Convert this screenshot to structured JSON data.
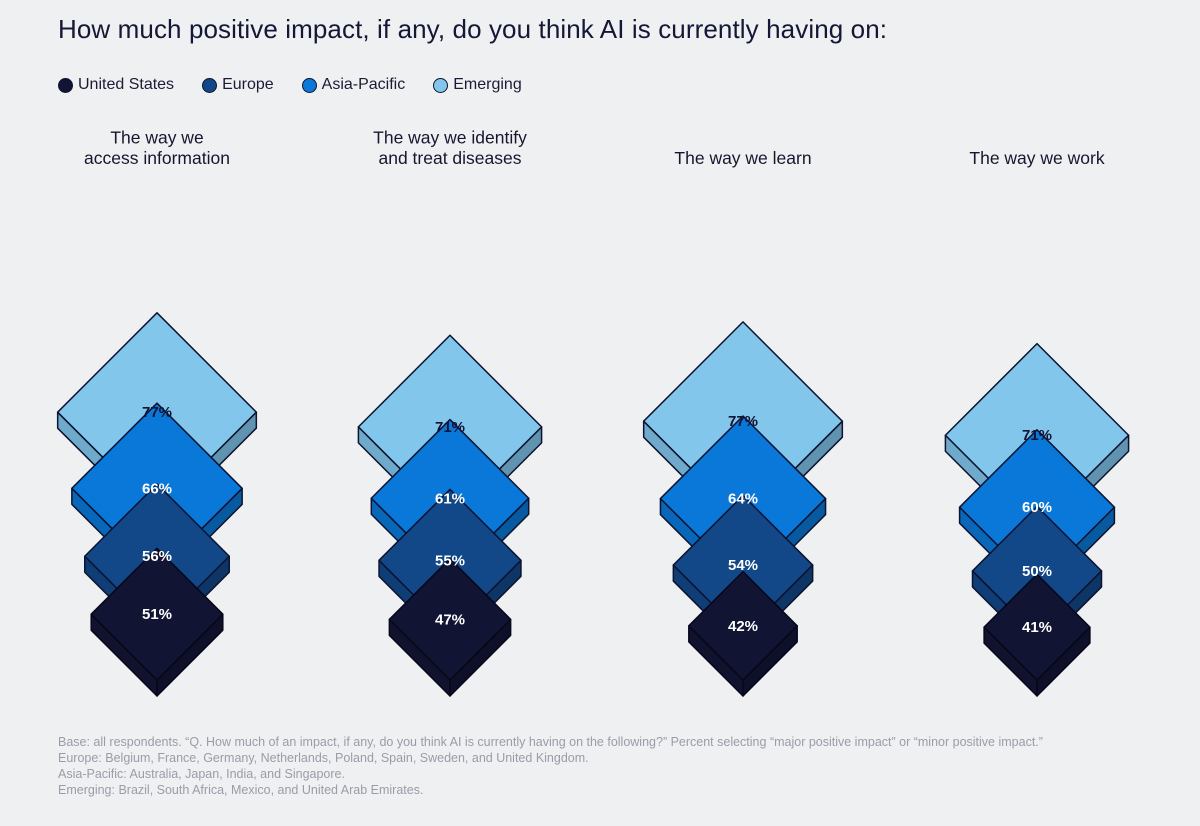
{
  "chart_data": {
    "type": "isometric-diamond",
    "title": "How much positive impact, if any, do you think AI is currently having on:",
    "series": [
      {
        "name": "United States",
        "color": "#121433"
      },
      {
        "name": "Europe",
        "color": "#124788"
      },
      {
        "name": "Asia-Pacific",
        "color": "#0a78d8"
      },
      {
        "name": "Emerging",
        "color": "#82c6ec"
      }
    ],
    "categories": [
      {
        "label_lines": [
          "The way we",
          "access information"
        ],
        "values": [
          51,
          56,
          66,
          77
        ],
        "labels": [
          "51%",
          "56%",
          "66%",
          "77%"
        ]
      },
      {
        "label_lines": [
          "The way we identify",
          "and treat diseases"
        ],
        "values": [
          47,
          55,
          61,
          71
        ],
        "labels": [
          "47%",
          "55%",
          "61%",
          "71%"
        ]
      },
      {
        "label_lines": [
          "The way we learn"
        ],
        "values": [
          42,
          54,
          64,
          77
        ],
        "labels": [
          "42%",
          "54%",
          "64%",
          "77%"
        ]
      },
      {
        "label_lines": [
          "The way we work"
        ],
        "values": [
          41,
          50,
          60,
          71
        ],
        "labels": [
          "41%",
          "50%",
          "60%",
          "71%"
        ]
      }
    ]
  },
  "footnote": {
    "base": "Base: all respondents. “Q. How much of an impact, if any, do you think AI is currently having on the following?” Percent selecting “major positive impact” or “minor positive impact.”",
    "europe": "Europe: Belgium, France, Germany, Netherlands, Poland, Spain, Sweden, and United Kingdom.",
    "asia_pacific": "Asia-Pacific: Australia, Japan, India, and Singapore.",
    "emerging": "Emerging: Brazil, South Africa, Mexico, and United Arab Emirates."
  }
}
